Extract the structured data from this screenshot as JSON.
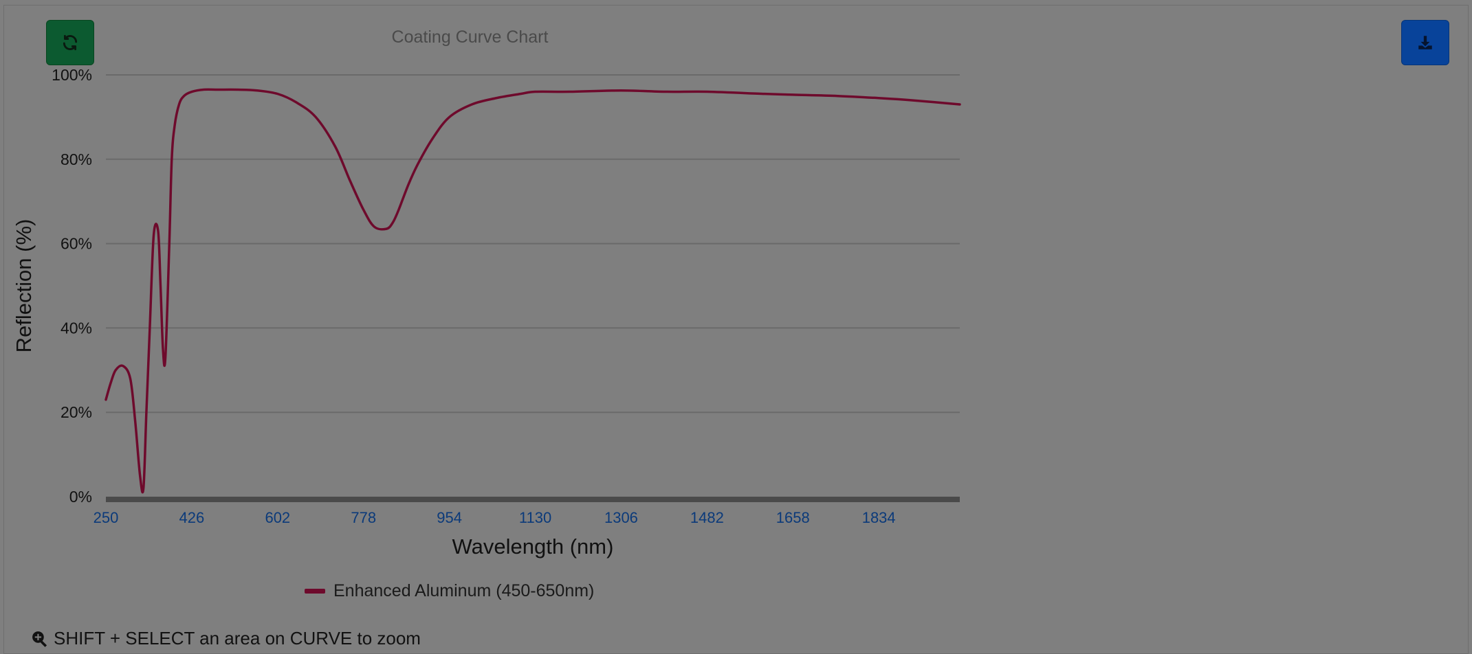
{
  "toolbar": {
    "refresh_icon": "refresh-icon",
    "download_icon": "download-icon"
  },
  "legend": {
    "label": "Enhanced Aluminum (450-650nm)"
  },
  "hint": {
    "icon": "zoom-in-icon",
    "text": "SHIFT + SELECT an area on CURVE to zoom"
  },
  "colors": {
    "series": "#6e0a2c",
    "refresh_button": "#0c5a30",
    "download_button": "#08439a",
    "x_tick": "#0b3a7a"
  },
  "chart_data": {
    "type": "line",
    "title": "Coating Curve Chart",
    "xlabel": "Wavelength (nm)",
    "ylabel": "Reflection (%)",
    "xlim": [
      250,
      2000
    ],
    "ylim": [
      0,
      100
    ],
    "x_ticks": [
      250,
      426,
      602,
      778,
      954,
      1130,
      1306,
      1482,
      1658,
      1834
    ],
    "y_ticks": [
      "0%",
      "20%",
      "40%",
      "60%",
      "80%",
      "100%"
    ],
    "y_tick_values": [
      0,
      20,
      40,
      60,
      80,
      100
    ],
    "grid": true,
    "legend_position": "bottom",
    "series": [
      {
        "name": "Enhanced Aluminum (450-650nm)",
        "x": [
          250,
          260,
          270,
          285,
          300,
          310,
          320,
          327,
          333,
          340,
          348,
          357,
          362,
          367,
          372,
          380,
          385,
          391,
          400,
          410,
          426,
          450,
          480,
          520,
          560,
          602,
          640,
          680,
          720,
          750,
          778,
          800,
          825,
          838,
          850,
          870,
          890,
          920,
          954,
          1000,
          1050,
          1100,
          1130,
          1200,
          1306,
          1400,
          1482,
          1600,
          1658,
          1750,
          1834,
          1900,
          2000
        ],
        "y": [
          23,
          27,
          30,
          31,
          28,
          18,
          5,
          2,
          20,
          40,
          62,
          63,
          50,
          35,
          33,
          60,
          80,
          88,
          93,
          95,
          96,
          96.5,
          96.5,
          96.5,
          96.3,
          95.5,
          93.5,
          90,
          83,
          75,
          68,
          64,
          63.5,
          65,
          68,
          74,
          79,
          85,
          90,
          93,
          94.5,
          95.5,
          96,
          96,
          96.3,
          96,
          96,
          95.5,
          95.3,
          95,
          94.5,
          94,
          93
        ]
      }
    ]
  }
}
